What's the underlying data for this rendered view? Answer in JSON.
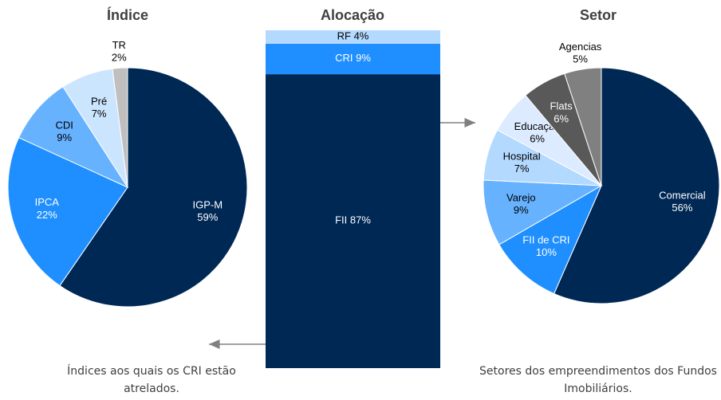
{
  "chart_data": [
    {
      "type": "pie",
      "title": "Índice",
      "categories": [
        "IGP-M",
        "IPCA",
        "CDI",
        "Pré",
        "TR"
      ],
      "values": [
        59,
        22,
        9,
        7,
        2
      ],
      "value_labels": [
        "59%",
        "22%",
        "9%",
        "7%",
        "2%"
      ],
      "colors": [
        "#002855",
        "#1f8fff",
        "#66b2ff",
        "#cce5ff",
        "#bfbfbf"
      ],
      "caption": "Índices aos quais os CRI estão atrelados."
    },
    {
      "type": "stacked_bar",
      "title": "Alocação",
      "series": [
        {
          "name": "FII",
          "color": "#002855",
          "values": [
            87
          ],
          "value_labels": [
            "87%"
          ]
        },
        {
          "name": "CRI",
          "color": "#1f8fff",
          "values": [
            9
          ],
          "value_labels": [
            "9%"
          ]
        },
        {
          "name": "RF",
          "color": "#b3d9ff",
          "values": [
            4
          ],
          "value_labels": [
            "4%"
          ]
        }
      ]
    },
    {
      "type": "pie",
      "title": "Setor",
      "categories": [
        "Comercial",
        "FII de CRI",
        "Varejo",
        "Hospital",
        "Educação",
        "Flats",
        "Agencias"
      ],
      "values": [
        56,
        10,
        9,
        7,
        6,
        6,
        5
      ],
      "value_labels": [
        "56%",
        "10%",
        "9%",
        "7%",
        "6%",
        "6%",
        "5%"
      ],
      "colors": [
        "#002855",
        "#1f8fff",
        "#66b2ff",
        "#b3d9ff",
        "#dcebff",
        "#595959",
        "#808080"
      ],
      "caption": "Setores dos empreendimentos dos Fundos Imobiliários."
    }
  ]
}
